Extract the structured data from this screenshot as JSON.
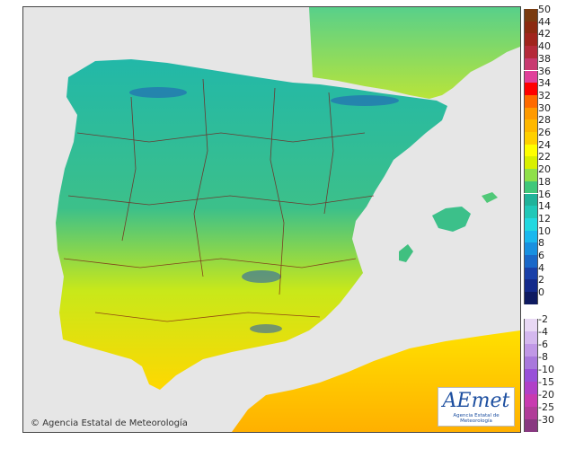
{
  "attribution": {
    "copyright_text": "Agencia Estatal de Meteorología",
    "logo_text": "AEmet",
    "logo_subtitle": "Agencia Estatal de Meteorología"
  },
  "legend": {
    "positive": [
      {
        "label": "50",
        "color": "#7a3b10"
      },
      {
        "label": "44",
        "color": "#8b2a10"
      },
      {
        "label": "42",
        "color": "#a0241c"
      },
      {
        "label": "40",
        "color": "#b52a3a"
      },
      {
        "label": "38",
        "color": "#c83a70"
      },
      {
        "label": "36",
        "color": "#e0409a"
      },
      {
        "label": "34",
        "color": "#ff0000"
      },
      {
        "label": "32",
        "color": "#ff6a00"
      },
      {
        "label": "30",
        "color": "#ff9a00"
      },
      {
        "label": "28",
        "color": "#ffb800"
      },
      {
        "label": "26",
        "color": "#ffd000"
      },
      {
        "label": "24",
        "color": "#ffff00"
      },
      {
        "label": "22",
        "color": "#d8f000"
      },
      {
        "label": "20",
        "color": "#8fe04a"
      },
      {
        "label": "18",
        "color": "#40c87a"
      },
      {
        "label": "16",
        "color": "#1fb39a"
      },
      {
        "label": "14",
        "color": "#20c8b8"
      },
      {
        "label": "12",
        "color": "#22d8e0"
      },
      {
        "label": "10",
        "color": "#1ab8ee"
      },
      {
        "label": "8",
        "color": "#1890e0"
      },
      {
        "label": "6",
        "color": "#1a68c8"
      },
      {
        "label": "4",
        "color": "#1a40a8"
      },
      {
        "label": "2",
        "color": "#142a8a"
      },
      {
        "label": "0",
        "color": "#0e1a60"
      }
    ],
    "negative": [
      {
        "label": "-2",
        "color": "#e8d8f4"
      },
      {
        "label": "-4",
        "color": "#d4b8ee"
      },
      {
        "label": "-6",
        "color": "#c098e6"
      },
      {
        "label": "-8",
        "color": "#a878dc"
      },
      {
        "label": "-10",
        "color": "#9850d8"
      },
      {
        "label": "-15",
        "color": "#b040c8"
      },
      {
        "label": "-20",
        "color": "#c83ab0"
      },
      {
        "label": "-25",
        "color": "#b03c98"
      },
      {
        "label": "-30",
        "color": "#883880"
      }
    ]
  }
}
